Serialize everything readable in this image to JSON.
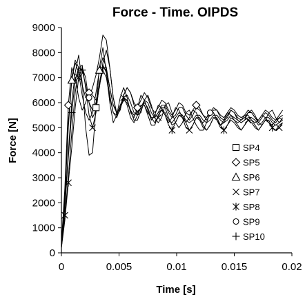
{
  "chart_data": {
    "type": "line",
    "title": "Force - Time. OIPDS",
    "xlabel": "Time [s]",
    "ylabel": "Force [N]",
    "xlim": [
      0,
      0.02
    ],
    "ylim": [
      0,
      9000
    ],
    "x_ticks": [
      0,
      0.005,
      0.01,
      0.015,
      0.02
    ],
    "x_tick_labels": [
      "0",
      "0.005",
      "0.01",
      "0.015",
      "0.02"
    ],
    "y_ticks": [
      0,
      1000,
      2000,
      3000,
      4000,
      5000,
      6000,
      7000,
      8000,
      9000
    ],
    "y_tick_labels": [
      "0",
      "1000",
      "2000",
      "3000",
      "4000",
      "5000",
      "6000",
      "7000",
      "8000",
      "9000"
    ],
    "grid": false,
    "legend_position": "right",
    "line_color": "#000000",
    "series": [
      {
        "name": "SP4",
        "marker": "square",
        "x": [
          0,
          0.0003,
          0.0006,
          0.0009,
          0.0012,
          0.0015,
          0.0018,
          0.0021,
          0.0024,
          0.0027,
          0.003,
          0.0033,
          0.0036,
          0.0039,
          0.0042,
          0.0045,
          0.0048,
          0.0051,
          0.0054,
          0.0057,
          0.006,
          0.0063,
          0.0066,
          0.0069,
          0.0072,
          0.0075,
          0.0078,
          0.0081,
          0.0084,
          0.0087,
          0.009,
          0.0093,
          0.0096,
          0.0099,
          0.0102,
          0.0105,
          0.0108,
          0.0111,
          0.0114,
          0.0117,
          0.012,
          0.0123,
          0.0126,
          0.0129,
          0.0132,
          0.0135,
          0.0138,
          0.0141,
          0.0144,
          0.0147,
          0.015,
          0.0153,
          0.0156,
          0.0159,
          0.0162,
          0.0165,
          0.0168,
          0.0171,
          0.0174,
          0.0177,
          0.018,
          0.0183,
          0.0186,
          0.0189,
          0.0192
        ],
        "y": [
          300,
          2000,
          4000,
          6000,
          7200,
          7900,
          6800,
          5000,
          3900,
          4000,
          5800,
          7400,
          8200,
          7200,
          6000,
          5200,
          5500,
          6200,
          6600,
          6200,
          5600,
          5400,
          5800,
          6300,
          6100,
          5700,
          5300,
          5500,
          5900,
          5800,
          5500,
          5200,
          5400,
          5800,
          5700,
          5400,
          5200,
          5400,
          5700,
          5600,
          5300,
          5200,
          5400,
          5700,
          5600,
          5300,
          5100,
          5300,
          5600,
          5500,
          5300,
          5200,
          5300,
          5500,
          5500,
          5300,
          5200,
          5300,
          5500,
          5400,
          5200,
          5100,
          5300,
          5400,
          5300
        ],
        "markers_x": [
          0.003
        ]
      },
      {
        "name": "SP5",
        "marker": "diamond",
        "x": [
          0,
          0.0003,
          0.0006,
          0.0009,
          0.0012,
          0.0015,
          0.0018,
          0.0021,
          0.0024,
          0.0027,
          0.003,
          0.0033,
          0.0036,
          0.0039,
          0.0042,
          0.0045,
          0.0048,
          0.0051,
          0.0054,
          0.0057,
          0.006,
          0.0063,
          0.0066,
          0.0069,
          0.0072,
          0.0075,
          0.0078,
          0.0081,
          0.0084,
          0.0087,
          0.009,
          0.0093,
          0.0096,
          0.0099,
          0.0102,
          0.0105,
          0.0108,
          0.0111,
          0.0114,
          0.0117,
          0.012,
          0.0123,
          0.0126,
          0.0129,
          0.0132,
          0.0135,
          0.0138,
          0.0141,
          0.0144,
          0.0147,
          0.015,
          0.0153,
          0.0156,
          0.0159,
          0.0162,
          0.0165,
          0.0168,
          0.0171,
          0.0174,
          0.0177,
          0.018,
          0.0183,
          0.0186,
          0.0189,
          0.0192
        ],
        "y": [
          400,
          2600,
          5900,
          7400,
          7000,
          6200,
          5700,
          6000,
          6400,
          6300,
          6100,
          6600,
          7600,
          8100,
          7400,
          6200,
          5600,
          5800,
          6300,
          6600,
          6400,
          6000,
          5800,
          6100,
          6400,
          6200,
          5800,
          5600,
          5800,
          6100,
          6000,
          5700,
          5500,
          5700,
          6000,
          5900,
          5600,
          5500,
          5700,
          5900,
          5800,
          5500,
          5400,
          5600,
          5800,
          5700,
          5500,
          5400,
          5600,
          5800,
          5700,
          5500,
          5400,
          5500,
          5700,
          5600,
          5400,
          5300,
          5500,
          5700,
          5600,
          5400,
          5300,
          5500,
          5700
        ],
        "markers_x": [
          0.0006,
          0.0024,
          0.0066,
          0.0117
        ]
      },
      {
        "name": "SP6",
        "marker": "triangle",
        "x": [
          0,
          0.0003,
          0.0006,
          0.0009,
          0.0012,
          0.0015,
          0.0018,
          0.0021,
          0.0024,
          0.0027,
          0.003,
          0.0033,
          0.0036,
          0.0039,
          0.0042,
          0.0045,
          0.0048,
          0.0051,
          0.0054,
          0.0057,
          0.006,
          0.0063,
          0.0066,
          0.0069,
          0.0072,
          0.0075,
          0.0078,
          0.0081,
          0.0084,
          0.0087,
          0.009,
          0.0093,
          0.0096,
          0.0099,
          0.0102,
          0.0105,
          0.0108,
          0.0111,
          0.0114,
          0.0117,
          0.012,
          0.0123,
          0.0126,
          0.0129,
          0.0132,
          0.0135,
          0.0138,
          0.0141,
          0.0144,
          0.0147,
          0.015,
          0.0153,
          0.0156,
          0.0159,
          0.0162,
          0.0165,
          0.0168,
          0.0171,
          0.0174,
          0.0177,
          0.018,
          0.0183,
          0.0186,
          0.0189,
          0.0192
        ],
        "y": [
          300,
          2200,
          5000,
          6900,
          7600,
          7200,
          6300,
          5600,
          5300,
          5600,
          6400,
          7300,
          7800,
          7400,
          6600,
          5900,
          5600,
          5800,
          6200,
          6300,
          6000,
          5600,
          5500,
          5800,
          6100,
          6000,
          5600,
          5400,
          5600,
          5900,
          5900,
          5600,
          5400,
          5500,
          5800,
          5800,
          5500,
          5300,
          5500,
          5800,
          5700,
          5500,
          5300,
          5500,
          5700,
          5700,
          5400,
          5300,
          5400,
          5700,
          5600,
          5400,
          5300,
          5400,
          5600,
          5600,
          5400,
          5200,
          5400,
          5600,
          5500,
          5300,
          5200,
          5400,
          5500
        ],
        "markers_x": [
          0.0009,
          0.0033
        ]
      },
      {
        "name": "SP7",
        "marker": "x",
        "x": [
          0,
          0.0003,
          0.0006,
          0.0009,
          0.0012,
          0.0015,
          0.0018,
          0.0021,
          0.0024,
          0.0027,
          0.003,
          0.0033,
          0.0036,
          0.0039,
          0.0042,
          0.0045,
          0.0048,
          0.0051,
          0.0054,
          0.0057,
          0.006,
          0.0063,
          0.0066,
          0.0069,
          0.0072,
          0.0075,
          0.0078,
          0.0081,
          0.0084,
          0.0087,
          0.009,
          0.0093,
          0.0096,
          0.0099,
          0.0102,
          0.0105,
          0.0108,
          0.0111,
          0.0114,
          0.0117,
          0.012,
          0.0123,
          0.0126,
          0.0129,
          0.0132,
          0.0135,
          0.0138,
          0.0141,
          0.0144,
          0.0147,
          0.015,
          0.0153,
          0.0156,
          0.0159,
          0.0162,
          0.0165,
          0.0168,
          0.0171,
          0.0174,
          0.0177,
          0.018,
          0.0183,
          0.0186,
          0.0189,
          0.0192
        ],
        "y": [
          200,
          1500,
          3000,
          4800,
          6400,
          7400,
          7500,
          6600,
          5500,
          5000,
          5600,
          6800,
          7500,
          7200,
          6300,
          5600,
          5400,
          5800,
          6200,
          6100,
          5700,
          5300,
          5300,
          5700,
          6000,
          5800,
          5400,
          5200,
          5400,
          5800,
          5800,
          5400,
          5100,
          5200,
          5500,
          5500,
          5200,
          4900,
          5100,
          5400,
          5400,
          5100,
          4900,
          5100,
          5400,
          5400,
          5100,
          4900,
          5100,
          5400,
          5300,
          5100,
          4900,
          5100,
          5300,
          5300,
          5100,
          4900,
          5100,
          5300,
          5300,
          5000,
          4900,
          5000,
          5200
        ],
        "markers_x": [
          0.0003,
          0.0027,
          0.0084,
          0.0111,
          0.0162,
          0.0189
        ]
      },
      {
        "name": "SP8",
        "marker": "asterisk",
        "x": [
          0,
          0.0003,
          0.0006,
          0.0009,
          0.0012,
          0.0015,
          0.0018,
          0.0021,
          0.0024,
          0.0027,
          0.003,
          0.0033,
          0.0036,
          0.0039,
          0.0042,
          0.0045,
          0.0048,
          0.0051,
          0.0054,
          0.0057,
          0.006,
          0.0063,
          0.0066,
          0.0069,
          0.0072,
          0.0075,
          0.0078,
          0.0081,
          0.0084,
          0.0087,
          0.009,
          0.0093,
          0.0096,
          0.0099,
          0.0102,
          0.0105,
          0.0108,
          0.0111,
          0.0114,
          0.0117,
          0.012,
          0.0123,
          0.0126,
          0.0129,
          0.0132,
          0.0135,
          0.0138,
          0.0141,
          0.0144,
          0.0147,
          0.015,
          0.0153,
          0.0156,
          0.0159,
          0.0162,
          0.0165,
          0.0168,
          0.0171,
          0.0174,
          0.0177,
          0.018,
          0.0183,
          0.0186,
          0.0189,
          0.0192
        ],
        "y": [
          200,
          1300,
          2800,
          4200,
          5800,
          7000,
          7400,
          7000,
          6000,
          5400,
          5700,
          6700,
          7300,
          7000,
          6200,
          5600,
          5500,
          5900,
          6200,
          5900,
          5400,
          5200,
          5500,
          5900,
          5900,
          5500,
          5100,
          5100,
          5500,
          5700,
          5500,
          5100,
          4900,
          5200,
          5500,
          5400,
          5000,
          4900,
          5100,
          5400,
          5300,
          5000,
          4900,
          5100,
          5400,
          5300,
          5000,
          4900,
          5100,
          5300,
          5200,
          5000,
          4900,
          5100,
          5300,
          5200,
          5000,
          4900,
          5100,
          5300,
          5200,
          5000,
          4900,
          5100,
          5200
        ],
        "markers_x": [
          0.0006,
          0.0015,
          0.0054,
          0.0096,
          0.0141,
          0.0183
        ]
      },
      {
        "name": "SP9",
        "marker": "circle",
        "x": [
          0,
          0.0003,
          0.0006,
          0.0009,
          0.0012,
          0.0015,
          0.0018,
          0.0021,
          0.0024,
          0.0027,
          0.003,
          0.0033,
          0.0036,
          0.0039,
          0.0042,
          0.0045,
          0.0048,
          0.0051,
          0.0054,
          0.0057,
          0.006,
          0.0063,
          0.0066,
          0.0069,
          0.0072,
          0.0075,
          0.0078,
          0.0081,
          0.0084,
          0.0087,
          0.009,
          0.0093,
          0.0096,
          0.0099,
          0.0102,
          0.0105,
          0.0108,
          0.0111,
          0.0114,
          0.0117,
          0.012,
          0.0123,
          0.0126,
          0.0129,
          0.0132,
          0.0135,
          0.0138,
          0.0141,
          0.0144,
          0.0147,
          0.015,
          0.0153,
          0.0156,
          0.0159,
          0.0162,
          0.0165,
          0.0168,
          0.0171,
          0.0174,
          0.0177,
          0.018,
          0.0183,
          0.0186,
          0.0189,
          0.0192
        ],
        "y": [
          300,
          2400,
          5200,
          7000,
          7700,
          7400,
          6700,
          6200,
          6200,
          6600,
          7100,
          7800,
          8700,
          8500,
          7400,
          6200,
          5500,
          5700,
          6300,
          6600,
          6400,
          5900,
          5500,
          5600,
          6100,
          6300,
          5900,
          5400,
          5200,
          5400,
          5900,
          6000,
          5600,
          5200,
          5000,
          5200,
          5600,
          5700,
          5400,
          5100,
          4900,
          4900,
          5200,
          5600,
          5600,
          5300,
          5100,
          5200,
          5500,
          5700,
          5600,
          5300,
          5200,
          5300,
          5600,
          5700,
          5500,
          5200,
          5100,
          5300,
          5600,
          5700,
          5400,
          5200,
          5400
        ],
        "markers_x": [
          0.0024,
          0.0129
        ]
      },
      {
        "name": "SP10",
        "marker": "plus",
        "x": [
          0,
          0.0003,
          0.0006,
          0.0009,
          0.0012,
          0.0015,
          0.0018,
          0.0021,
          0.0024,
          0.0027,
          0.003,
          0.0033,
          0.0036,
          0.0039,
          0.0042,
          0.0045,
          0.0048,
          0.0051,
          0.0054,
          0.0057,
          0.006,
          0.0063,
          0.0066,
          0.0069,
          0.0072,
          0.0075,
          0.0078,
          0.0081,
          0.0084,
          0.0087,
          0.009,
          0.0093,
          0.0096,
          0.0099,
          0.0102,
          0.0105,
          0.0108,
          0.0111,
          0.0114,
          0.0117,
          0.012,
          0.0123,
          0.0126,
          0.0129,
          0.0132,
          0.0135,
          0.0138,
          0.0141,
          0.0144,
          0.0147,
          0.015,
          0.0153,
          0.0156,
          0.0159,
          0.0162,
          0.0165,
          0.0168,
          0.0171,
          0.0174,
          0.0177,
          0.018,
          0.0183,
          0.0186,
          0.0189,
          0.0192
        ],
        "y": [
          300,
          1800,
          3800,
          5600,
          6900,
          7400,
          7300,
          6700,
          6000,
          5700,
          6000,
          6800,
          7400,
          7300,
          6600,
          5900,
          5600,
          5800,
          6100,
          6000,
          5700,
          5500,
          5600,
          5900,
          5900,
          5600,
          5400,
          5400,
          5600,
          5700,
          5600,
          5300,
          5200,
          5400,
          5600,
          5500,
          5300,
          5200,
          5300,
          5500,
          5500,
          5300,
          5200,
          5300,
          5500,
          5500,
          5300,
          5200,
          5300,
          5500,
          5400,
          5300,
          5200,
          5300,
          5400,
          5400,
          5300,
          5100,
          5200,
          5400,
          5400,
          5200,
          5100,
          5200,
          5300
        ],
        "markers_x": [
          0.0009,
          0.0018,
          0.0036
        ]
      }
    ]
  }
}
